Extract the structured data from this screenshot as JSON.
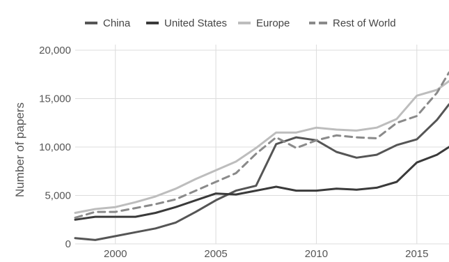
{
  "chart_data": {
    "type": "line",
    "title": "",
    "xlabel": "",
    "ylabel": "Number of papers",
    "xlim": [
      1998,
      2016.6
    ],
    "ylim": [
      0,
      20000
    ],
    "x_ticks": [
      2000,
      2005,
      2010,
      2015
    ],
    "x_tick_labels": [
      "2000",
      "2005",
      "2010",
      "2015"
    ],
    "y_ticks": [
      0,
      5000,
      10000,
      15000,
      20000
    ],
    "y_tick_labels": [
      "0",
      "5,000",
      "10,000",
      "15,000",
      "20,000"
    ],
    "grid": true,
    "legend_position": "top",
    "series": [
      {
        "name": "China",
        "color": "#555555",
        "dash": false,
        "x": [
          1998,
          1999,
          2000,
          2001,
          2002,
          2003,
          2004,
          2005,
          2006,
          2007,
          2008,
          2009,
          2010,
          2011,
          2012,
          2013,
          2014,
          2015,
          2016,
          2016.6
        ],
        "y": [
          600,
          400,
          800,
          1200,
          1600,
          2200,
          3300,
          4500,
          5500,
          6000,
          10300,
          11000,
          10700,
          9500,
          8900,
          9200,
          10200,
          10800,
          12800,
          14400
        ]
      },
      {
        "name": "United States",
        "color": "#3a3a3a",
        "dash": false,
        "x": [
          1998,
          1999,
          2000,
          2001,
          2002,
          2003,
          2004,
          2005,
          2006,
          2007,
          2008,
          2009,
          2010,
          2011,
          2012,
          2013,
          2014,
          2015,
          2016,
          2016.6
        ],
        "y": [
          2500,
          2800,
          2800,
          2800,
          3200,
          3800,
          4500,
          5200,
          5100,
          5500,
          5900,
          5500,
          5500,
          5700,
          5600,
          5800,
          6400,
          8400,
          9200,
          10000
        ]
      },
      {
        "name": "Europe",
        "color": "#bdbdbd",
        "dash": false,
        "x": [
          1998,
          1999,
          2000,
          2001,
          2002,
          2003,
          2004,
          2005,
          2006,
          2007,
          2008,
          2009,
          2010,
          2011,
          2012,
          2013,
          2014,
          2015,
          2016,
          2016.6
        ],
        "y": [
          3200,
          3600,
          3800,
          4300,
          4900,
          5700,
          6700,
          7600,
          8500,
          9900,
          11500,
          11500,
          12000,
          11800,
          11700,
          12000,
          12900,
          15300,
          15900,
          16800
        ]
      },
      {
        "name": "Rest of World",
        "color": "#8a8a8a",
        "dash": true,
        "x": [
          1998,
          1999,
          2000,
          2001,
          2002,
          2003,
          2004,
          2005,
          2006,
          2007,
          2008,
          2009,
          2010,
          2011,
          2012,
          2013,
          2014,
          2015,
          2016,
          2016.6
        ],
        "y": [
          2700,
          3300,
          3300,
          3700,
          4100,
          4600,
          5500,
          6400,
          7300,
          9300,
          11000,
          9900,
          10700,
          11200,
          11000,
          10900,
          12500,
          13200,
          15600,
          17700
        ]
      }
    ]
  }
}
